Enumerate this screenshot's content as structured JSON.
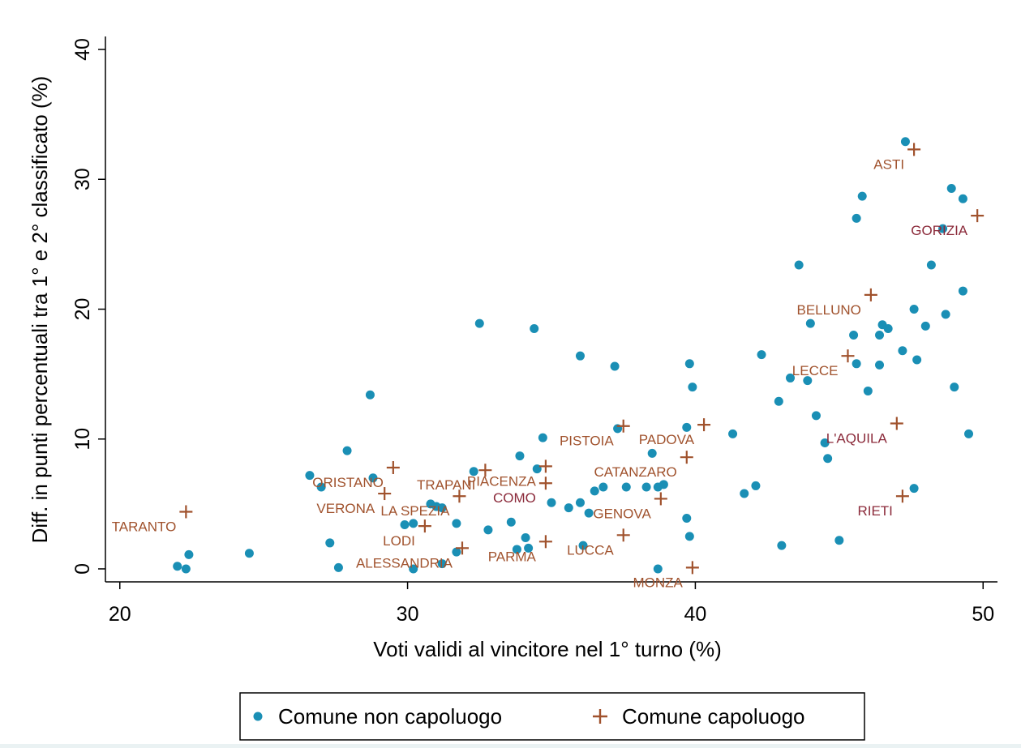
{
  "chart_data": {
    "type": "scatter",
    "xlabel": "Voti validi al vincitore nel 1° turno (%)",
    "ylabel": "Diff. in punti percentuali tra 1° e 2° classificato (%)",
    "xlim": [
      19.5,
      50.5
    ],
    "ylim": [
      -1,
      41
    ],
    "xticks": [
      20,
      30,
      40,
      50
    ],
    "yticks": [
      0,
      10,
      20,
      30,
      40
    ],
    "grid": false,
    "legend_position": "bottom",
    "colors": {
      "non_capoluogo": "#1a8fb5",
      "capoluogo": "#a0522d",
      "label_dark": "#8b2a3a"
    },
    "series": [
      {
        "name": "Comune non capoluogo",
        "marker": "circle",
        "points": [
          [
            22.0,
            0.2
          ],
          [
            22.3,
            0.0
          ],
          [
            22.4,
            1.1
          ],
          [
            24.5,
            1.2
          ],
          [
            26.6,
            7.2
          ],
          [
            27.0,
            6.3
          ],
          [
            27.3,
            2.0
          ],
          [
            27.6,
            0.1
          ],
          [
            27.9,
            9.1
          ],
          [
            28.7,
            13.4
          ],
          [
            28.8,
            7.0
          ],
          [
            29.9,
            3.4
          ],
          [
            30.2,
            3.5
          ],
          [
            30.2,
            0.0
          ],
          [
            30.8,
            5.0
          ],
          [
            31.0,
            4.8
          ],
          [
            31.2,
            4.7
          ],
          [
            31.2,
            0.4
          ],
          [
            31.7,
            3.5
          ],
          [
            31.7,
            1.3
          ],
          [
            32.3,
            7.5
          ],
          [
            32.5,
            18.9
          ],
          [
            32.8,
            3.0
          ],
          [
            33.6,
            3.6
          ],
          [
            33.8,
            1.5
          ],
          [
            33.9,
            8.7
          ],
          [
            34.1,
            2.4
          ],
          [
            34.2,
            1.6
          ],
          [
            34.4,
            18.5
          ],
          [
            34.5,
            7.7
          ],
          [
            34.7,
            10.1
          ],
          [
            35.0,
            5.1
          ],
          [
            35.6,
            4.7
          ],
          [
            36.0,
            16.4
          ],
          [
            36.0,
            5.1
          ],
          [
            36.1,
            1.8
          ],
          [
            36.3,
            4.3
          ],
          [
            36.5,
            6.0
          ],
          [
            36.8,
            6.3
          ],
          [
            37.2,
            15.6
          ],
          [
            37.3,
            10.8
          ],
          [
            37.6,
            6.3
          ],
          [
            38.3,
            6.3
          ],
          [
            38.5,
            8.9
          ],
          [
            38.7,
            0.0
          ],
          [
            38.7,
            6.3
          ],
          [
            38.9,
            6.5
          ],
          [
            39.7,
            10.9
          ],
          [
            39.7,
            3.9
          ],
          [
            39.8,
            15.8
          ],
          [
            39.8,
            2.5
          ],
          [
            39.9,
            14.0
          ],
          [
            41.3,
            10.4
          ],
          [
            41.7,
            5.8
          ],
          [
            42.1,
            6.4
          ],
          [
            42.3,
            16.5
          ],
          [
            42.9,
            12.9
          ],
          [
            43.0,
            1.8
          ],
          [
            43.3,
            14.7
          ],
          [
            43.6,
            23.4
          ],
          [
            43.9,
            14.5
          ],
          [
            44.0,
            18.9
          ],
          [
            44.2,
            11.8
          ],
          [
            44.5,
            9.7
          ],
          [
            44.6,
            8.5
          ],
          [
            45.0,
            2.2
          ],
          [
            45.5,
            18.0
          ],
          [
            45.6,
            27.0
          ],
          [
            45.6,
            15.8
          ],
          [
            45.8,
            28.7
          ],
          [
            46.0,
            13.7
          ],
          [
            46.4,
            15.7
          ],
          [
            46.4,
            18.0
          ],
          [
            46.5,
            18.8
          ],
          [
            46.7,
            18.5
          ],
          [
            47.2,
            16.8
          ],
          [
            47.3,
            32.9
          ],
          [
            47.6,
            6.2
          ],
          [
            47.6,
            20.0
          ],
          [
            47.7,
            16.1
          ],
          [
            48.0,
            18.7
          ],
          [
            48.2,
            23.4
          ],
          [
            48.6,
            26.2
          ],
          [
            48.7,
            19.6
          ],
          [
            48.9,
            29.3
          ],
          [
            49.0,
            14.0
          ],
          [
            49.3,
            21.4
          ],
          [
            49.3,
            28.5
          ],
          [
            49.5,
            10.4
          ]
        ]
      },
      {
        "name": "Comune capoluogo",
        "marker": "plus",
        "points": [
          {
            "x": 22.3,
            "y": 4.4,
            "label": "TARANTO"
          },
          {
            "x": 29.2,
            "y": 5.8,
            "label": "VERONA"
          },
          {
            "x": 29.5,
            "y": 7.8,
            "label": "ORISTANO"
          },
          {
            "x": 30.6,
            "y": 3.3,
            "label": "LODI"
          },
          {
            "x": 31.8,
            "y": 5.6,
            "label": "LA SPEZIA"
          },
          {
            "x": 31.9,
            "y": 1.6,
            "label": "ALESSANDRIA"
          },
          {
            "x": 32.7,
            "y": 7.6,
            "label": "TRAPANI"
          },
          {
            "x": 34.8,
            "y": 7.9,
            "label": "PIACENZA"
          },
          {
            "x": 34.8,
            "y": 6.6,
            "label": "COMO"
          },
          {
            "x": 34.8,
            "y": 2.1,
            "label": "PARMA"
          },
          {
            "x": 37.5,
            "y": 11.0,
            "label": "PISTOIA"
          },
          {
            "x": 37.5,
            "y": 2.6,
            "label": "LUCCA"
          },
          {
            "x": 38.8,
            "y": 5.4,
            "label": "GENOVA"
          },
          {
            "x": 39.7,
            "y": 8.6,
            "label": "CATANZARO"
          },
          {
            "x": 39.9,
            "y": 0.1,
            "label": "MONZA"
          },
          {
            "x": 40.3,
            "y": 11.1,
            "label": "PADOVA"
          },
          {
            "x": 45.3,
            "y": 16.4,
            "label": "LECCE"
          },
          {
            "x": 46.1,
            "y": 21.1,
            "label": "BELLUNO"
          },
          {
            "x": 47.0,
            "y": 11.2,
            "label": "L'AQUILA"
          },
          {
            "x": 47.2,
            "y": 5.6,
            "label": "RIETI"
          },
          {
            "x": 47.6,
            "y": 32.3,
            "label": "ASTI"
          },
          {
            "x": 49.8,
            "y": 27.2,
            "label": "GORIZIA"
          }
        ]
      }
    ]
  }
}
